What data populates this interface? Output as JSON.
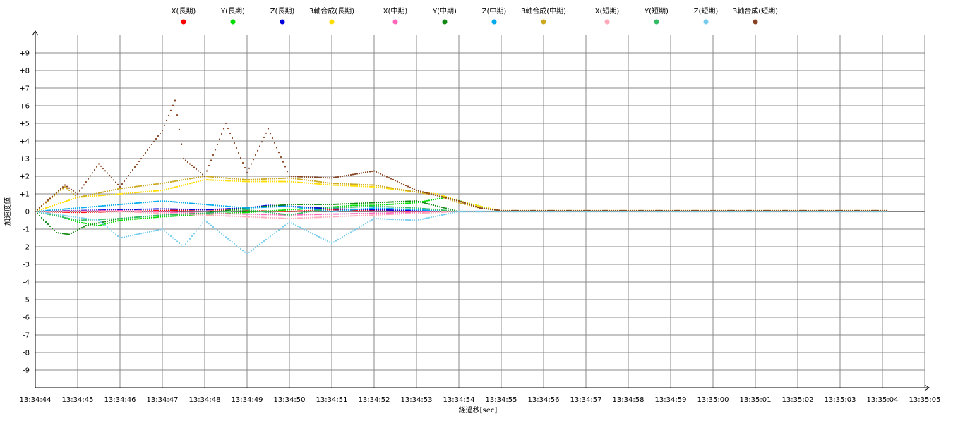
{
  "chart_data": {
    "type": "scatter",
    "title": "",
    "xlabel": "経過秒[sec]",
    "ylabel": "加速度値",
    "grid": true,
    "legend_position": "top",
    "ylim": [
      -10,
      10
    ],
    "xlim": [
      "13:34:44",
      "13:35:05"
    ],
    "y_ticks": [
      "+9",
      "+8",
      "+7",
      "+6",
      "+5",
      "+4",
      "+3",
      "+2",
      "+1",
      "0",
      "-1",
      "-2",
      "-3",
      "-4",
      "-5",
      "-6",
      "-7",
      "-8",
      "-9"
    ],
    "x_ticks": [
      "13:34:44",
      "13:34:45",
      "13:34:46",
      "13:34:47",
      "13:34:48",
      "13:34:49",
      "13:34:50",
      "13:34:51",
      "13:34:52",
      "13:34:53",
      "13:34:54",
      "13:34:55",
      "13:34:56",
      "13:34:57",
      "13:34:58",
      "13:34:59",
      "13:35:00",
      "13:35:01",
      "13:35:02",
      "13:35:03",
      "13:35:04",
      "13:35:05"
    ],
    "series": [
      {
        "name": "X(長期)",
        "color": "#ff0000",
        "x": [
          0,
          1,
          2,
          3,
          4,
          5,
          6,
          7,
          8,
          9,
          10,
          11,
          13,
          15,
          17,
          19,
          20.1
        ],
        "y": [
          0,
          -0.05,
          0,
          0.05,
          0.1,
          0.05,
          0,
          0.1,
          0.05,
          0,
          0,
          0,
          0,
          0,
          0,
          0,
          0
        ]
      },
      {
        "name": "Y(長期)",
        "color": "#00dd00",
        "x": [
          0,
          0.5,
          1,
          1.5,
          2,
          3,
          4,
          5,
          6,
          7,
          7.5,
          8,
          9,
          9.7,
          10.5,
          11,
          13,
          15,
          17,
          19,
          20.1
        ],
        "y": [
          0,
          -0.2,
          -0.6,
          -0.8,
          -0.5,
          -0.3,
          -0.15,
          -0.05,
          0.1,
          0.25,
          0.35,
          0.35,
          0.5,
          0.8,
          0.3,
          0,
          0,
          0,
          0,
          0,
          0
        ]
      },
      {
        "name": "Z(長期)",
        "color": "#0000dd",
        "x": [
          0,
          1,
          2,
          3,
          4,
          5,
          5.5,
          6,
          7,
          8,
          9,
          10,
          11,
          13,
          15,
          17,
          19,
          20.1
        ],
        "y": [
          0,
          0.05,
          0.1,
          0.15,
          0.1,
          0.2,
          0.35,
          0.3,
          0.15,
          0.1,
          0.05,
          0,
          0,
          0,
          0,
          0,
          0,
          0
        ]
      },
      {
        "name": "3軸合成(長期)",
        "color": "#ffdd00",
        "x": [
          0,
          0.5,
          1,
          2,
          3,
          4,
          5,
          6,
          7,
          8,
          9,
          9.5,
          10,
          10.5,
          11,
          12,
          13,
          15,
          17,
          19,
          20.1
        ],
        "y": [
          0,
          0.4,
          0.8,
          1.0,
          1.2,
          1.8,
          1.7,
          1.7,
          1.5,
          1.4,
          1.1,
          1.0,
          0.6,
          0.3,
          0.05,
          0.05,
          0.05,
          0.05,
          0.05,
          0.05,
          0.05
        ]
      },
      {
        "name": "X(中期)",
        "color": "#ff66bb",
        "x": [
          0,
          2,
          4,
          6,
          8,
          10,
          12,
          16,
          20.1
        ],
        "y": [
          0,
          0.05,
          -0.1,
          -0.2,
          -0.1,
          0,
          0,
          0,
          0
        ]
      },
      {
        "name": "Y(中期)",
        "color": "#118811",
        "x": [
          0,
          0.5,
          0.8,
          1.2,
          2,
          3,
          4,
          5,
          6,
          7,
          8,
          9,
          9.5,
          10,
          10.5,
          11,
          13,
          16,
          20.1
        ],
        "y": [
          0,
          -1.2,
          -1.3,
          -0.8,
          -0.4,
          -0.2,
          -0.1,
          0.2,
          0.4,
          0.4,
          0.5,
          0.6,
          0.3,
          0,
          0,
          0,
          0,
          0,
          0
        ]
      },
      {
        "name": "Z(中期)",
        "color": "#00aaee",
        "x": [
          0,
          1,
          2,
          3,
          4,
          5,
          6,
          7,
          8,
          9,
          10,
          11,
          13,
          16,
          20.1
        ],
        "y": [
          0,
          0.2,
          0.4,
          0.6,
          0.4,
          0.2,
          0.3,
          0,
          0.2,
          0.1,
          0,
          0,
          0,
          0,
          0
        ]
      },
      {
        "name": "3軸合成(中期)",
        "color": "#ccaa22",
        "x": [
          0,
          0.7,
          1,
          2,
          3,
          4,
          5,
          6,
          7,
          8,
          9,
          9.5,
          10,
          10.5,
          11,
          13,
          16,
          20.1
        ],
        "y": [
          0,
          1.4,
          0.8,
          1.3,
          1.6,
          2.0,
          1.8,
          1.9,
          1.6,
          1.5,
          1.1,
          0.9,
          0.5,
          0.2,
          0.05,
          0.05,
          0.05,
          0.05
        ]
      },
      {
        "name": "X(短期)",
        "color": "#ffaabb",
        "x": [
          0,
          2,
          4,
          5,
          6,
          7,
          8,
          10,
          14,
          20.1
        ],
        "y": [
          0,
          0,
          -0.2,
          -0.3,
          -0.4,
          -0.3,
          -0.2,
          0,
          0,
          0
        ]
      },
      {
        "name": "Y(短期)",
        "color": "#33bb66",
        "x": [
          0,
          1,
          2,
          3,
          4,
          5,
          6,
          7,
          8,
          9,
          10,
          12,
          16,
          20.1
        ],
        "y": [
          0,
          -0.5,
          -0.4,
          -0.2,
          -0.1,
          0.1,
          -0.2,
          0.2,
          0.3,
          0.2,
          0,
          0,
          0,
          0
        ]
      },
      {
        "name": "Z(短期)",
        "color": "#77ccee",
        "x": [
          0,
          1.5,
          2,
          3,
          3.5,
          4,
          5,
          6,
          7,
          8,
          9,
          10,
          12,
          16,
          20.1
        ],
        "y": [
          0,
          -0.5,
          -1.5,
          -1.0,
          -2.0,
          -0.5,
          -2.4,
          -0.6,
          -1.8,
          -0.4,
          -0.5,
          0,
          0,
          0,
          0
        ]
      },
      {
        "name": "3軸合成(短期)",
        "color": "#884422",
        "x": [
          0,
          0.7,
          1,
          1.5,
          2,
          3,
          3.3,
          3.5,
          4,
          4.5,
          5,
          5.5,
          6,
          7,
          8,
          9,
          10,
          10.5,
          11,
          13,
          16,
          20.1
        ],
        "y": [
          0,
          1.5,
          1.0,
          2.7,
          1.4,
          4.6,
          6.3,
          3.0,
          2.0,
          5.0,
          2.2,
          4.7,
          2.0,
          1.9,
          2.3,
          1.2,
          0.6,
          0.2,
          0.05,
          0.05,
          0.05,
          0.05
        ]
      }
    ]
  }
}
